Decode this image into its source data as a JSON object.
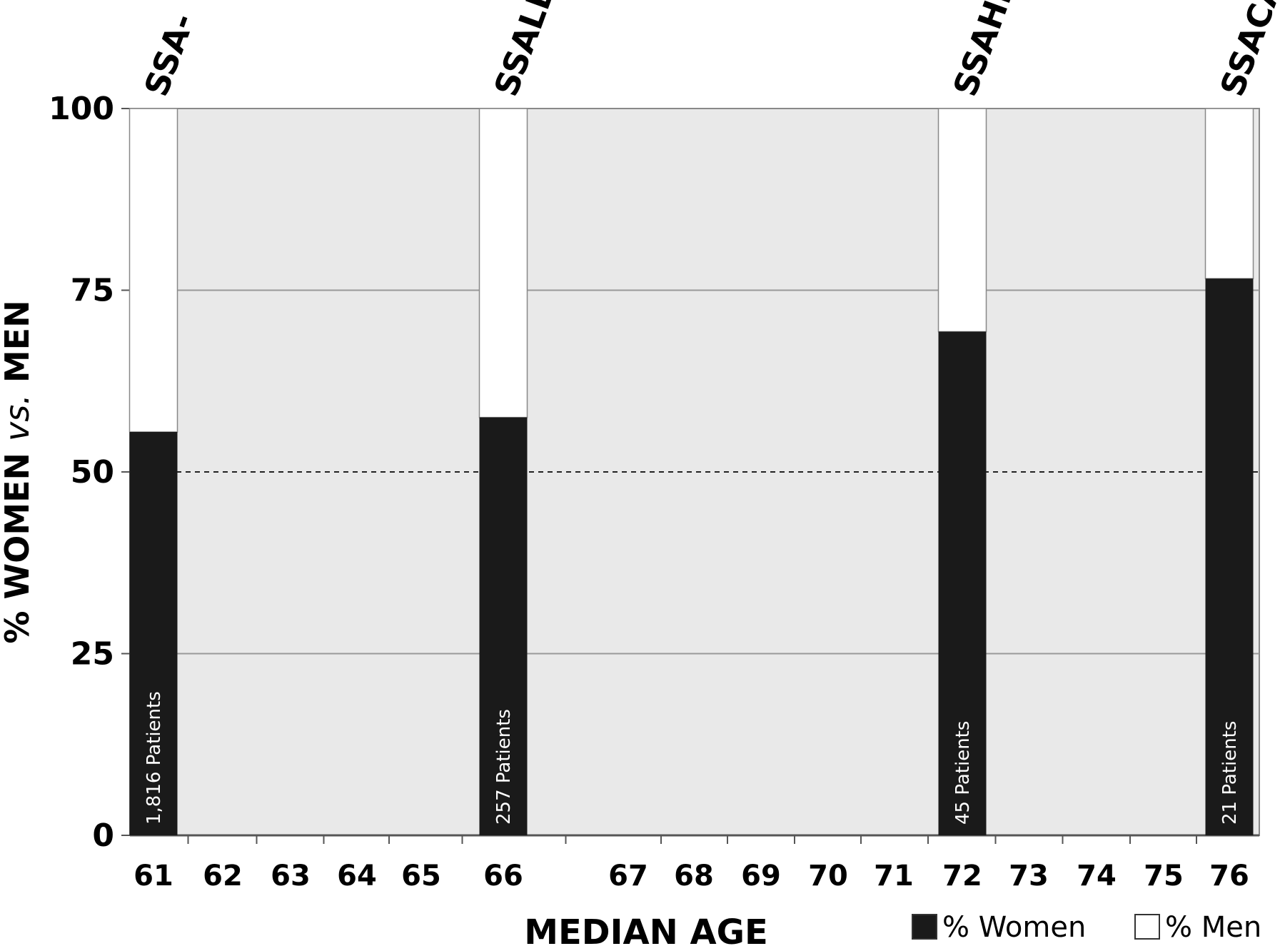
{
  "chart_data": {
    "type": "bar",
    "subtype": "stacked-percent",
    "xlabel": "MEDIAN AGE",
    "ylabel_parts": [
      "% WOMEN ",
      "vs.",
      " MEN"
    ],
    "ylim": [
      0,
      100
    ],
    "yticks": [
      0,
      25,
      50,
      75,
      100
    ],
    "xticks": [
      61,
      62,
      63,
      64,
      65,
      66,
      67,
      68,
      69,
      70,
      71,
      72,
      73,
      74,
      75,
      76
    ],
    "grid": true,
    "reference_line": 50,
    "legend_position": "bottom-right",
    "series": [
      {
        "name": "% Women",
        "color": "#1a1a1a"
      },
      {
        "name": "% Men",
        "color": "#ffffff"
      }
    ],
    "bars": [
      {
        "label": "SSA-",
        "median_age": 61,
        "women": 55.5,
        "men": 44.5,
        "patients": "1,816 Patients"
      },
      {
        "label": "SSALD",
        "median_age": 66,
        "women": 57.5,
        "men": 42.5,
        "patients": "257 Patients"
      },
      {
        "label": "SSAHD",
        "median_age": 72,
        "women": 69.3,
        "men": 30.7,
        "patients": "45 Patients"
      },
      {
        "label": "SSACA",
        "median_age": 76,
        "women": 76.6,
        "men": 23.4,
        "patients": "21 Patients"
      }
    ]
  },
  "colors": {
    "plot_background": "#e9e9e9",
    "gridline": "#999999",
    "women": "#1a1a1a",
    "men": "#ffffff"
  }
}
